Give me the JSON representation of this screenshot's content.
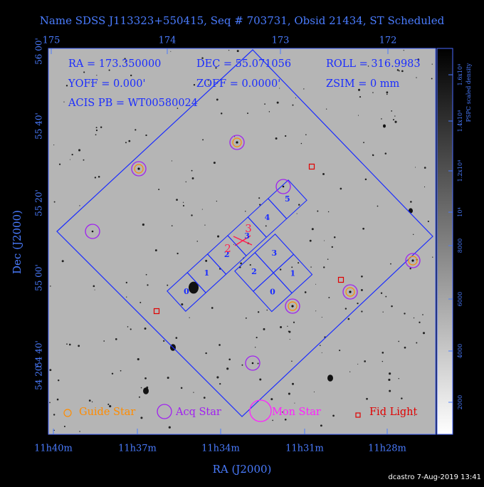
{
  "title": "Name SDSS J113323+550415, Seq # 703731, Obsid 21434, ST Scheduled",
  "info": [
    "RA = 173.350000",
    "DEC = 55.071056",
    "ROLL = 316.9983",
    "YOFF =   0.000'",
    "ZOFF =  0.0000'",
    "ZSIM = 0 mm",
    "ACIS PB = WT00580024"
  ],
  "top_ticks": [
    "175",
    "174",
    "173",
    "172"
  ],
  "bottom_ticks": [
    "11h40m",
    "11h37m",
    "11h34m",
    "11h31m",
    "11h28m"
  ],
  "left_ticks": [
    "56 00'",
    "55 40'",
    "55 20'",
    "55 00'",
    "54 40'",
    "54 20'"
  ],
  "x_label": "RA (J2000)",
  "y_label": "Dec (J2000)",
  "colorbar": {
    "label": "PSPC scaled density",
    "ticks": [
      "2000",
      "4000",
      "6000",
      "8000",
      "10⁴",
      "1.2x10⁴",
      "1.4x10⁴",
      "1.6x10⁴"
    ]
  },
  "acis_i_chips": [
    "0",
    "1",
    "2",
    "3"
  ],
  "acis_s_chips": [
    "0",
    "1",
    "2",
    "3",
    "4",
    "5"
  ],
  "aimpoint_labels": [
    "2",
    "3"
  ],
  "legend": [
    "Guide Star",
    "Acq Star",
    "Mon Star",
    "Fid Light"
  ],
  "footer": "dcastro  7-Aug-2019 13:41"
}
